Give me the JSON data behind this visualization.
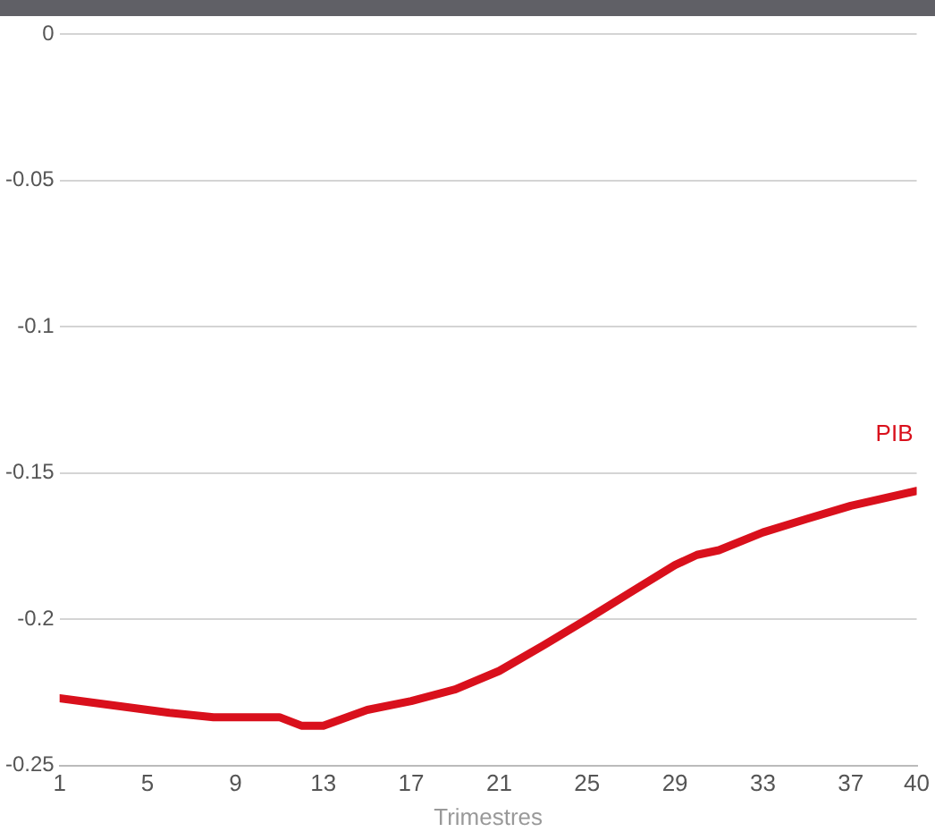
{
  "chart_data": {
    "type": "line",
    "xlabel": "Trimestres",
    "xlim": [
      1,
      40
    ],
    "xticks": [
      1,
      5,
      9,
      13,
      17,
      21,
      25,
      29,
      33,
      37,
      40
    ],
    "ylim": [
      -0.25,
      0
    ],
    "yticks": [
      -0.25,
      -0.2,
      -0.15,
      -0.1,
      -0.05,
      0
    ],
    "grid": "y",
    "legend": false,
    "marker": "none",
    "line_style": "solid",
    "series": [
      {
        "name": "PIB",
        "color": "#d9101c",
        "x": [
          1,
          2,
          4,
          6,
          8,
          11,
          12,
          13,
          15,
          17,
          19,
          21,
          23,
          25,
          27,
          29,
          30,
          31,
          33,
          35,
          37,
          40
        ],
        "values": [
          -0.227,
          -0.228,
          -0.23,
          -0.232,
          -0.2335,
          -0.2335,
          -0.2364,
          -0.2364,
          -0.231,
          -0.228,
          -0.224,
          -0.2177,
          -0.209,
          -0.2,
          -0.1907,
          -0.1815,
          -0.178,
          -0.1764,
          -0.1703,
          -0.1657,
          -0.1612,
          -0.1561
        ]
      }
    ]
  }
}
